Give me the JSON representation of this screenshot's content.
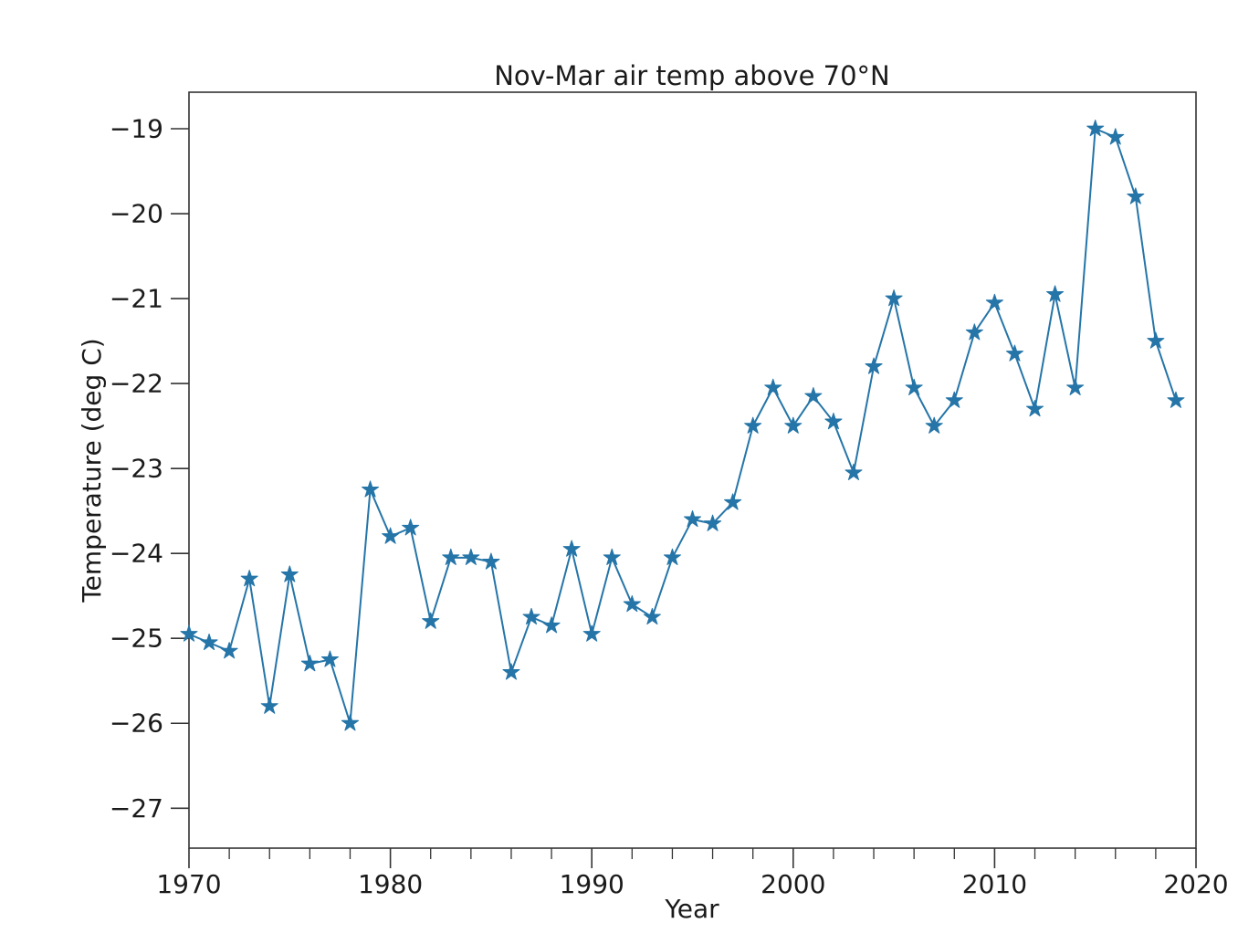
{
  "figure": {
    "title": "Nov-Mar air temp above 70°N",
    "xlabel": "Year",
    "ylabel": "Temperature (deg C)"
  },
  "chart_data": {
    "type": "line",
    "title": "Nov-Mar air temp above 70°N",
    "xlabel": "Year",
    "ylabel": "Temperature (deg C)",
    "marker": "star",
    "grid": false,
    "legend": "none",
    "line_color": "#2575a8",
    "axis_color": "#333333",
    "text_color": "#1a1a1a",
    "xlim": [
      1970,
      2020
    ],
    "ylim": [
      -27.47,
      -18.57
    ],
    "xticks_major": [
      1970,
      1980,
      1990,
      2000,
      2010,
      2020
    ],
    "xticks_minor": [
      1972,
      1974,
      1976,
      1978,
      1982,
      1984,
      1986,
      1988,
      1992,
      1994,
      1996,
      1998,
      2002,
      2004,
      2006,
      2008,
      2012,
      2014,
      2016,
      2018
    ],
    "yticks": [
      -19,
      -20,
      -21,
      -22,
      -23,
      -24,
      -25,
      -26,
      -27
    ],
    "x": [
      1970,
      1971,
      1972,
      1973,
      1974,
      1975,
      1976,
      1977,
      1978,
      1979,
      1980,
      1981,
      1982,
      1983,
      1984,
      1985,
      1986,
      1987,
      1988,
      1989,
      1990,
      1991,
      1992,
      1993,
      1994,
      1995,
      1996,
      1997,
      1998,
      1999,
      2000,
      2001,
      2002,
      2003,
      2004,
      2005,
      2006,
      2007,
      2008,
      2009,
      2010,
      2011,
      2012,
      2013,
      2014,
      2015,
      2016,
      2017,
      2018,
      2019
    ],
    "y": [
      -24.95,
      -25.05,
      -25.15,
      -24.3,
      -25.8,
      -24.25,
      -25.3,
      -25.25,
      -26.0,
      -23.25,
      -23.8,
      -23.7,
      -24.8,
      -24.05,
      -24.05,
      -24.1,
      -25.4,
      -24.75,
      -24.85,
      -23.95,
      -24.95,
      -24.05,
      -24.6,
      -24.75,
      -24.05,
      -23.6,
      -23.65,
      -23.4,
      -22.5,
      -22.05,
      -22.5,
      -22.15,
      -22.45,
      -23.05,
      -21.8,
      -21.0,
      -22.05,
      -22.5,
      -22.2,
      -21.4,
      -21.05,
      -21.65,
      -22.3,
      -20.95,
      -22.05,
      -19.0,
      -19.1,
      -19.8,
      -21.5,
      -22.2
    ]
  }
}
